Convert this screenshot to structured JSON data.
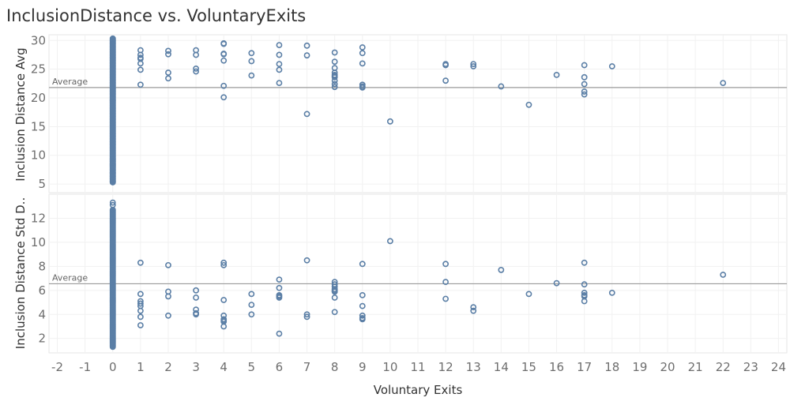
{
  "title": "InclusionDistance vs. VoluntaryExits",
  "colors": {
    "marker": "#5b7fa6",
    "reference_line": "#9a9a9a",
    "grid": "#f1f1f1"
  },
  "chart_data": {
    "type": "scatter",
    "title": "InclusionDistance vs. VoluntaryExits",
    "xlabel": "Voluntary Exits",
    "x_ticks": [
      -2,
      -1,
      0,
      1,
      2,
      3,
      4,
      5,
      6,
      7,
      8,
      9,
      10,
      11,
      12,
      13,
      14,
      15,
      16,
      17,
      18,
      19,
      20,
      21,
      22,
      23,
      24
    ],
    "xlim": [
      -2.3,
      24.3
    ],
    "grid": true,
    "panes": [
      {
        "ylabel": "Inclusion Distance Avg",
        "ylim": [
          3.5,
          31
        ],
        "y_ticks": [
          5,
          10,
          15,
          20,
          25,
          30
        ],
        "reference_line": {
          "label": "Average",
          "value": 21.8
        },
        "zero_column": {
          "x": 0,
          "y_from": 5.3,
          "y_to": 30.4,
          "step": 0.08
        },
        "x": [
          0,
          0,
          0,
          0,
          0,
          0,
          1,
          1,
          1,
          1,
          1,
          1,
          1,
          2,
          2,
          2,
          2,
          3,
          3,
          3,
          3,
          4,
          4,
          4,
          4,
          4,
          4,
          4,
          5,
          5,
          5,
          6,
          6,
          6,
          6,
          6,
          7,
          7,
          7,
          8,
          8,
          8,
          8,
          8,
          8,
          8,
          8,
          8,
          8,
          9,
          9,
          9,
          9,
          9,
          9,
          10,
          12,
          12,
          12,
          13,
          13,
          14,
          15,
          16,
          17,
          17,
          17,
          17,
          17,
          18,
          22
        ],
        "y": [
          5.3,
          6.3,
          6.9,
          8.2,
          8.5,
          9.2,
          28.3,
          27.5,
          27.0,
          26.8,
          26.0,
          24.9,
          22.3,
          28.2,
          27.6,
          24.4,
          23.4,
          28.3,
          27.5,
          25.1,
          24.6,
          29.5,
          29.4,
          27.7,
          27.6,
          26.5,
          22.1,
          20.1,
          27.8,
          26.4,
          23.9,
          29.2,
          27.5,
          25.9,
          24.9,
          22.6,
          29.1,
          27.4,
          17.2,
          27.9,
          26.3,
          25.2,
          24.4,
          24.0,
          23.8,
          23.6,
          23.0,
          22.4,
          21.9,
          28.8,
          27.8,
          26.0,
          22.3,
          21.8,
          22.0,
          15.9,
          25.9,
          25.7,
          23.0,
          25.9,
          25.5,
          22.0,
          18.8,
          24.0,
          25.7,
          23.6,
          22.4,
          21.1,
          20.6,
          25.5,
          22.6
        ]
      },
      {
        "ylabel": "Inclusion Distance Std D..",
        "ylim": [
          0.8,
          14.0
        ],
        "y_ticks": [
          2,
          4,
          6,
          8,
          10,
          12
        ],
        "reference_line": {
          "label": "Average",
          "value": 6.55
        },
        "zero_column": {
          "x": 0,
          "y_from": 1.3,
          "y_to": 12.7,
          "step": 0.05
        },
        "x": [
          0,
          0,
          1,
          1,
          1,
          1,
          1,
          1,
          1,
          1,
          2,
          2,
          2,
          2,
          3,
          3,
          3,
          3,
          3,
          4,
          4,
          4,
          4,
          4,
          4,
          4,
          4,
          5,
          5,
          5,
          6,
          6,
          6,
          6,
          6,
          6,
          7,
          7,
          7,
          8,
          8,
          8,
          8,
          8,
          8,
          8,
          8,
          8,
          9,
          9,
          9,
          9,
          9,
          9,
          10,
          12,
          12,
          12,
          13,
          13,
          14,
          15,
          16,
          17,
          17,
          17,
          17,
          17,
          17,
          18,
          22
        ],
        "y": [
          13.3,
          13.1,
          8.3,
          5.7,
          5.1,
          4.9,
          4.7,
          4.3,
          3.8,
          3.1,
          8.1,
          5.9,
          5.5,
          3.9,
          6.0,
          5.4,
          4.4,
          4.0,
          4.1,
          8.3,
          8.1,
          5.2,
          3.9,
          3.6,
          3.4,
          3.0,
          3.5,
          5.7,
          4.8,
          4.0,
          6.9,
          6.2,
          5.6,
          5.4,
          5.5,
          2.4,
          8.5,
          4.0,
          3.8,
          6.7,
          6.3,
          6.1,
          6.0,
          5.9,
          5.9,
          5.4,
          4.2,
          6.5,
          8.2,
          5.6,
          4.7,
          3.9,
          3.6,
          3.7,
          10.1,
          8.2,
          6.7,
          5.3,
          4.6,
          4.3,
          7.7,
          5.7,
          6.6,
          8.3,
          6.5,
          5.8,
          5.5,
          5.1,
          5.6,
          5.8,
          7.3
        ]
      }
    ]
  }
}
